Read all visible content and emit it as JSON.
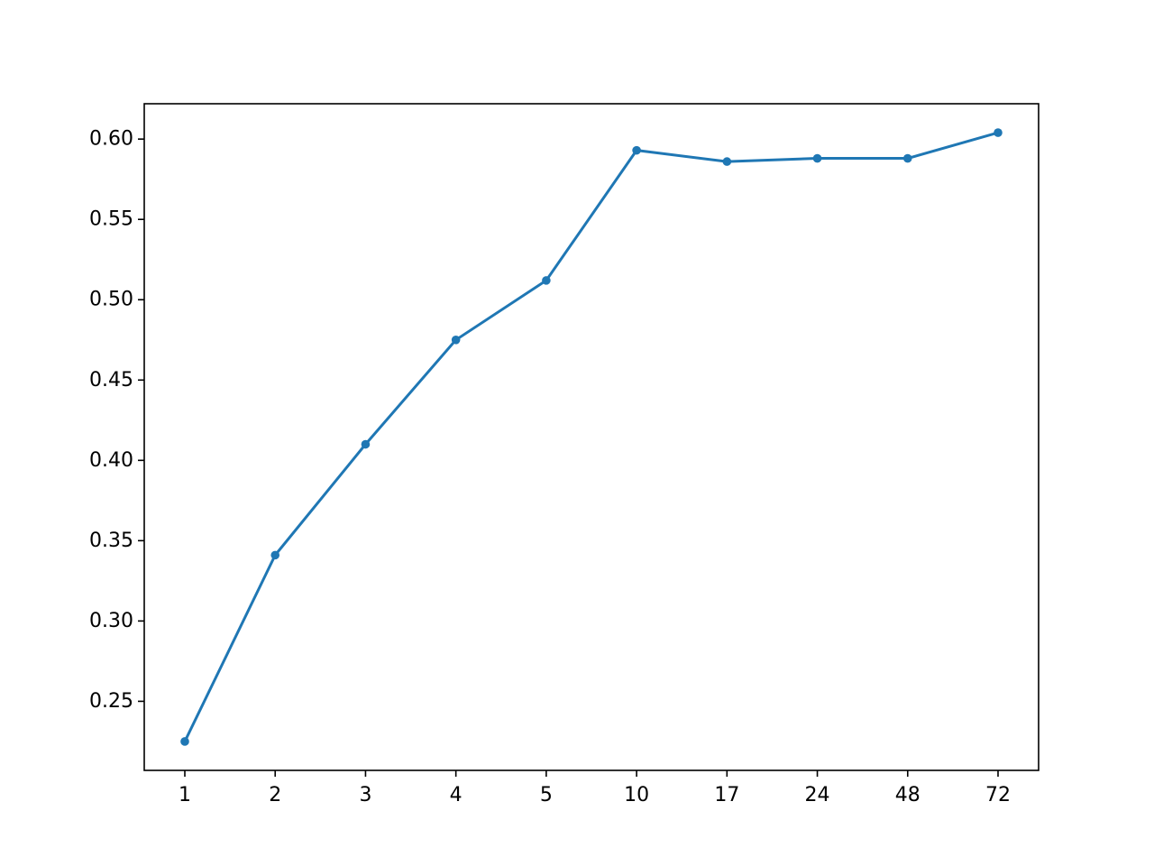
{
  "chart_data": {
    "type": "line",
    "title": "",
    "xlabel": "",
    "ylabel": "",
    "categories": [
      "1",
      "2",
      "3",
      "4",
      "5",
      "10",
      "17",
      "24",
      "48",
      "72"
    ],
    "series": [
      {
        "values": [
          0.225,
          0.341,
          0.41,
          0.475,
          0.512,
          0.593,
          0.586,
          0.588,
          0.588,
          0.604
        ],
        "color": "#1f77b4",
        "marker": "circle"
      }
    ],
    "ylim": [
      0.207,
      0.622
    ],
    "yticks": [
      {
        "value": 0.25,
        "label": "0.25"
      },
      {
        "value": 0.3,
        "label": "0.30"
      },
      {
        "value": 0.35,
        "label": "0.35"
      },
      {
        "value": 0.4,
        "label": "0.40"
      },
      {
        "value": 0.45,
        "label": "0.45"
      },
      {
        "value": 0.5,
        "label": "0.50"
      },
      {
        "value": 0.55,
        "label": "0.55"
      },
      {
        "value": 0.6,
        "label": "0.60"
      }
    ],
    "grid": false,
    "legend": "none"
  }
}
